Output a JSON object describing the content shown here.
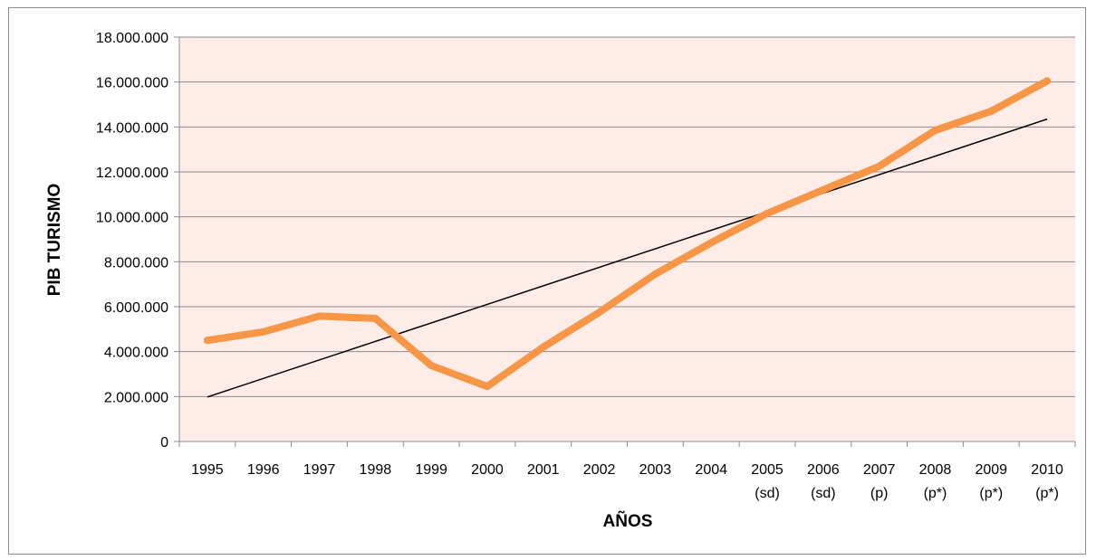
{
  "chart_data": {
    "type": "line",
    "categories": [
      "1995",
      "1996",
      "1997",
      "1998",
      "1999",
      "2000",
      "2001",
      "2002",
      "2003",
      "2004",
      "2005",
      "2006",
      "2007",
      "2008",
      "2009",
      "2010"
    ],
    "category_sublabels": [
      "",
      "",
      "",
      "",
      "",
      "",
      "",
      "",
      "",
      "",
      "(sd)",
      "(sd)",
      "(p)",
      "(p*)",
      "(p*)",
      "(p*)"
    ],
    "series": [
      {
        "values": [
          4500000,
          4880000,
          5580000,
          5480000,
          3380000,
          2450000,
          4200000,
          5750000,
          7450000,
          8850000,
          10150000,
          11200000,
          12250000,
          13850000,
          14700000,
          16050000
        ],
        "color": "#f79646"
      }
    ],
    "trendline": {
      "type": "linear",
      "start": 1980000,
      "end": 14350000,
      "color": "#000000"
    },
    "xlabel": "AÑOS",
    "ylabel": "PIB TURISMO",
    "ylim": [
      0,
      18000000
    ],
    "yticks": [
      0,
      2000000,
      4000000,
      6000000,
      8000000,
      10000000,
      12000000,
      14000000,
      16000000,
      18000000
    ],
    "ytick_labels": [
      "0",
      "2.000.000",
      "4.000.000",
      "6.000.000",
      "8.000.000",
      "10.000.000",
      "12.000.000",
      "14.000.000",
      "16.000.000",
      "18.000.000"
    ],
    "grid": true,
    "plot_background": "#fdece7",
    "legend": "none"
  }
}
